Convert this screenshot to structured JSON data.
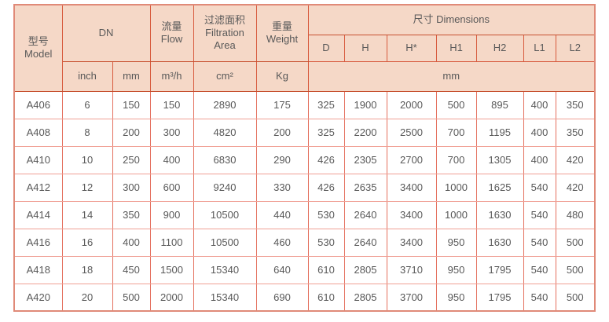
{
  "colors": {
    "header_bg": "#f5d8c7",
    "header_border": "#d75a3d",
    "strong_border": "#c7502f",
    "data_v_border": "#e4705e",
    "data_h_border": "#f0a095",
    "outer_border": "#e08a78",
    "text": "#595959",
    "page_bg": "#ffffff"
  },
  "table": {
    "header": {
      "model": "型号\nModel",
      "dn": "DN",
      "flow": "流量\nFlow",
      "filtration_area": "过滤面积\nFiltration\nArea",
      "weight": "重量\nWeight",
      "dimensions": "尺寸 Dimensions",
      "dim_columns": [
        "D",
        "H",
        "H*",
        "H1",
        "H2",
        "L1",
        "L2"
      ],
      "unit_inch": "inch",
      "unit_mm": "mm",
      "unit_flow": "m³/h",
      "unit_area": "cm²",
      "unit_weight": "Kg",
      "unit_dims": "mm"
    },
    "column_keys": [
      "model",
      "dn-inch",
      "dn-mm",
      "flow",
      "filtration-area",
      "weight",
      "dim-d",
      "dim-h",
      "dim-hstar",
      "dim-h1",
      "dim-h2",
      "dim-l1",
      "dim-l2"
    ],
    "rows": [
      [
        "A406",
        "6",
        "150",
        "150",
        "2890",
        "175",
        "325",
        "1900",
        "2000",
        "500",
        "895",
        "400",
        "350"
      ],
      [
        "A408",
        "8",
        "200",
        "300",
        "4820",
        "200",
        "325",
        "2200",
        "2500",
        "700",
        "1195",
        "400",
        "350"
      ],
      [
        "A410",
        "10",
        "250",
        "400",
        "6830",
        "290",
        "426",
        "2305",
        "2700",
        "700",
        "1305",
        "400",
        "420"
      ],
      [
        "A412",
        "12",
        "300",
        "600",
        "9240",
        "330",
        "426",
        "2635",
        "3400",
        "1000",
        "1625",
        "540",
        "420"
      ],
      [
        "A414",
        "14",
        "350",
        "900",
        "10500",
        "440",
        "530",
        "2640",
        "3400",
        "1000",
        "1630",
        "540",
        "480"
      ],
      [
        "A416",
        "16",
        "400",
        "1100",
        "10500",
        "460",
        "530",
        "2640",
        "3400",
        "950",
        "1630",
        "540",
        "500"
      ],
      [
        "A418",
        "18",
        "450",
        "1500",
        "15340",
        "640",
        "610",
        "2805",
        "3710",
        "950",
        "1795",
        "540",
        "500"
      ],
      [
        "A420",
        "20",
        "500",
        "2000",
        "15340",
        "690",
        "610",
        "2805",
        "3700",
        "950",
        "1795",
        "540",
        "500"
      ]
    ]
  }
}
